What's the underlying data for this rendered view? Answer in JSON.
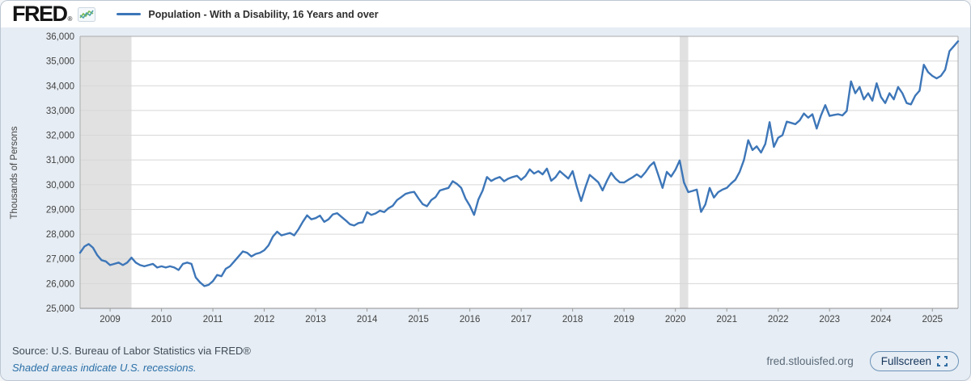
{
  "header": {
    "logo": "FRED",
    "registered_mark": "®",
    "legend_label": "Population - With a Disability, 16 Years and over"
  },
  "chart_data": {
    "type": "line",
    "title": "Population - With a Disability, 16 Years and over",
    "ylabel": "Thousands of Persons",
    "frequency": "monthly",
    "x_start": "2008-06",
    "x_end": "2025-07",
    "ylim": [
      25000,
      36000
    ],
    "ytick_interval": 1000,
    "ytick_labels": [
      "36,000",
      "35,000",
      "34,000",
      "33,000",
      "32,000",
      "31,000",
      "30,000",
      "29,000",
      "28,000",
      "27,000",
      "26,000",
      "25,000"
    ],
    "xtick_labels": [
      "2009",
      "2010",
      "2011",
      "2012",
      "2013",
      "2014",
      "2015",
      "2016",
      "2017",
      "2018",
      "2019",
      "2020",
      "2021",
      "2022",
      "2023",
      "2024",
      "2025"
    ],
    "line_color": "#3d76b8",
    "recession_color": "#e1e1e1",
    "grid": true,
    "legend_position": "top-left",
    "recessions": [
      {
        "start": "2008-06",
        "end": "2009-06"
      },
      {
        "start": "2020-02",
        "end": "2020-04"
      }
    ],
    "series": [
      {
        "name": "Population - With a Disability, 16 Years and over",
        "units": "Thousands of Persons",
        "values": [
          27250,
          27500,
          27600,
          27450,
          27150,
          26950,
          26900,
          26750,
          26800,
          26850,
          26750,
          26850,
          27050,
          26850,
          26750,
          26700,
          26750,
          26800,
          26650,
          26700,
          26650,
          26700,
          26650,
          26550,
          26800,
          26850,
          26800,
          26250,
          26050,
          25900,
          25950,
          26100,
          26350,
          26300,
          26600,
          26700,
          26900,
          27100,
          27300,
          27250,
          27100,
          27200,
          27250,
          27350,
          27550,
          27900,
          28100,
          27950,
          28000,
          28050,
          27950,
          28200,
          28500,
          28760,
          28600,
          28650,
          28750,
          28500,
          28600,
          28800,
          28850,
          28700,
          28560,
          28400,
          28350,
          28450,
          28480,
          28890,
          28780,
          28840,
          28950,
          28890,
          29050,
          29150,
          29380,
          29500,
          29630,
          29680,
          29710,
          29450,
          29215,
          29130,
          29380,
          29500,
          29765,
          29820,
          29870,
          30140,
          30030,
          29870,
          29440,
          29150,
          28780,
          29400,
          29765,
          30310,
          30150,
          30250,
          30310,
          30140,
          30250,
          30310,
          30360,
          30200,
          30350,
          30620,
          30450,
          30550,
          30420,
          30650,
          30160,
          30300,
          30550,
          30400,
          30250,
          30550,
          29900,
          29340,
          29900,
          30400,
          30250,
          30100,
          29770,
          30150,
          30480,
          30250,
          30100,
          30090,
          30200,
          30300,
          30420,
          30300,
          30500,
          30750,
          30910,
          30400,
          29870,
          30520,
          30330,
          30600,
          30980,
          30090,
          29700,
          29750,
          29800,
          28900,
          29200,
          29870,
          29480,
          29700,
          29800,
          29870,
          30050,
          30200,
          30520,
          31000,
          31800,
          31400,
          31550,
          31300,
          31650,
          32530,
          31530,
          31900,
          32000,
          32550,
          32500,
          32450,
          32600,
          32880,
          32710,
          32850,
          32270,
          32800,
          33220,
          32780,
          32820,
          32850,
          32800,
          32980,
          34180,
          33700,
          33950,
          33450,
          33700,
          33400,
          34100,
          33550,
          33300,
          33700,
          33450,
          33950,
          33700,
          33300,
          33250,
          33600,
          33800,
          34850,
          34550,
          34400,
          34300,
          34400,
          34650,
          35400,
          35600,
          35800
        ]
      }
    ]
  },
  "footer": {
    "source": "Source: U.S. Bureau of Labor Statistics via FRED®",
    "recession_note": "Shaded areas indicate U.S. recessions.",
    "site": "fred.stlouisfed.org",
    "fullscreen_label": "Fullscreen"
  }
}
